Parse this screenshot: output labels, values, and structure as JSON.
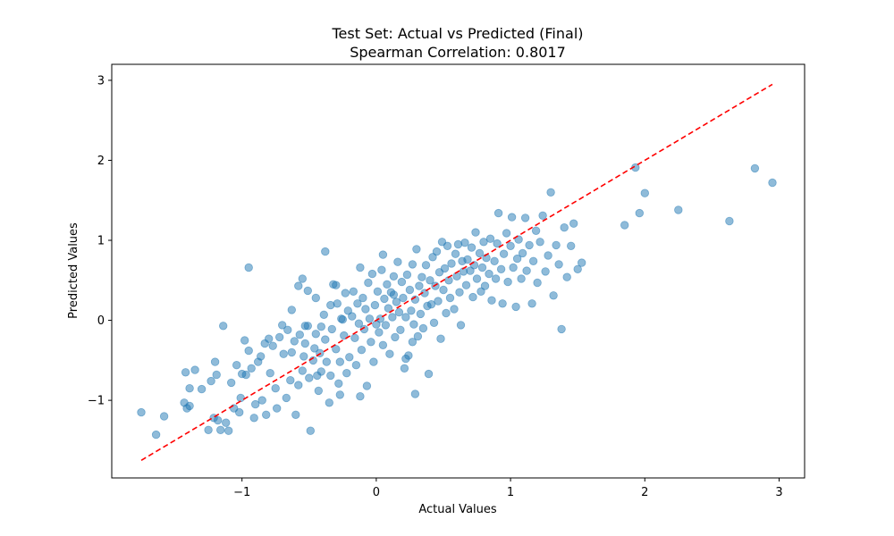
{
  "chart_data": {
    "type": "scatter",
    "title": "Test Set: Actual vs Predicted (Final)",
    "subtitle": "Spearman Correlation: 0.8017",
    "xlabel": "Actual Values",
    "ylabel": "Predicted Values",
    "xlim": [
      -1.97,
      3.19
    ],
    "ylim": [
      -1.97,
      3.2
    ],
    "xticks": [
      -1,
      0,
      1,
      2,
      3
    ],
    "yticks": [
      -1,
      0,
      1,
      2,
      3
    ],
    "xtick_labels": [
      "−1",
      "0",
      "1",
      "2",
      "3"
    ],
    "ytick_labels": [
      "−1",
      "0",
      "1",
      "2",
      "3"
    ],
    "grid": false,
    "point_color": "#1f77b4",
    "point_alpha": 0.5,
    "reference_line": {
      "x": [
        -1.75,
        2.95
      ],
      "y": [
        -1.75,
        2.95
      ],
      "color": "#ff0000",
      "style": "dashed"
    },
    "points": [
      [
        -1.75,
        -1.15
      ],
      [
        -1.64,
        -1.43
      ],
      [
        -1.58,
        -1.2
      ],
      [
        -1.43,
        -1.03
      ],
      [
        -1.42,
        -0.65
      ],
      [
        -1.41,
        -1.1
      ],
      [
        -1.39,
        -1.07
      ],
      [
        -1.39,
        -0.85
      ],
      [
        -1.35,
        -0.62
      ],
      [
        -1.3,
        -0.86
      ],
      [
        -1.25,
        -1.37
      ],
      [
        -1.23,
        -0.76
      ],
      [
        -1.21,
        -1.22
      ],
      [
        -1.2,
        -0.52
      ],
      [
        -1.19,
        -0.68
      ],
      [
        -1.18,
        -1.25
      ],
      [
        -1.16,
        -1.37
      ],
      [
        -1.14,
        -0.07
      ],
      [
        -1.12,
        -1.28
      ],
      [
        -1.1,
        -1.38
      ],
      [
        -1.08,
        -0.78
      ],
      [
        -1.06,
        -1.1
      ],
      [
        -1.04,
        -0.56
      ],
      [
        -1.02,
        -1.15
      ],
      [
        -1.01,
        -0.97
      ],
      [
        -1.0,
        -0.67
      ],
      [
        -0.98,
        -0.25
      ],
      [
        -0.97,
        -0.68
      ],
      [
        -0.95,
        -0.38
      ],
      [
        -0.93,
        -0.6
      ],
      [
        -0.91,
        -1.22
      ],
      [
        -0.9,
        -1.05
      ],
      [
        -0.88,
        -0.52
      ],
      [
        -0.86,
        -0.45
      ],
      [
        -0.85,
        -1.0
      ],
      [
        -0.83,
        -0.29
      ],
      [
        -0.82,
        -1.18
      ],
      [
        -0.8,
        -0.23
      ],
      [
        -0.79,
        -0.66
      ],
      [
        -0.77,
        -0.32
      ],
      [
        -0.75,
        -0.85
      ],
      [
        -0.74,
        -1.1
      ],
      [
        -0.72,
        -0.21
      ],
      [
        -0.7,
        -0.06
      ],
      [
        -0.69,
        -0.42
      ],
      [
        -0.67,
        -0.97
      ],
      [
        -0.66,
        -0.12
      ],
      [
        -0.64,
        -0.75
      ],
      [
        -0.63,
        -0.4
      ],
      [
        -0.61,
        -0.26
      ],
      [
        -0.6,
        -1.18
      ],
      [
        -0.58,
        -0.81
      ],
      [
        -0.57,
        -0.18
      ],
      [
        -0.55,
        -0.63
      ],
      [
        -0.54,
        -0.45
      ],
      [
        -0.53,
        -0.29
      ],
      [
        -0.51,
        -0.07
      ],
      [
        -0.5,
        -0.72
      ],
      [
        -0.49,
        -1.38
      ],
      [
        -0.47,
        -0.5
      ],
      [
        -0.46,
        -0.35
      ],
      [
        -0.45,
        -0.17
      ],
      [
        -0.43,
        -0.88
      ],
      [
        -0.42,
        -0.41
      ],
      [
        -0.41,
        -0.64
      ],
      [
        -0.39,
        0.07
      ],
      [
        -0.38,
        -0.24
      ],
      [
        -0.37,
        -0.52
      ],
      [
        -0.35,
        -1.03
      ],
      [
        -0.34,
        -0.69
      ],
      [
        -0.33,
        -0.11
      ],
      [
        -0.32,
        0.45
      ],
      [
        -0.3,
        -0.36
      ],
      [
        -0.29,
        0.21
      ],
      [
        -0.28,
        -0.79
      ],
      [
        -0.27,
        -0.52
      ],
      [
        -0.25,
        0.01
      ],
      [
        -0.24,
        -0.19
      ],
      [
        -0.23,
        0.34
      ],
      [
        -0.22,
        -0.66
      ],
      [
        -0.21,
        0.12
      ],
      [
        -0.2,
        -0.46
      ],
      [
        -0.18,
        0.05
      ],
      [
        -0.17,
        0.36
      ],
      [
        -0.16,
        -0.22
      ],
      [
        -0.15,
        -0.56
      ],
      [
        -0.14,
        0.21
      ],
      [
        -0.13,
        -0.04
      ],
      [
        -0.12,
        0.66
      ],
      [
        -0.11,
        -0.37
      ],
      [
        -0.1,
        0.28
      ],
      [
        -0.09,
        -0.11
      ],
      [
        -0.08,
        0.14
      ],
      [
        -0.07,
        -0.82
      ],
      [
        -0.06,
        0.47
      ],
      [
        -0.05,
        0.02
      ],
      [
        -0.04,
        -0.27
      ],
      [
        -0.03,
        0.58
      ],
      [
        -0.02,
        -0.52
      ],
      [
        -0.01,
        0.19
      ],
      [
        0.0,
        -0.05
      ],
      [
        0.01,
        0.36
      ],
      [
        0.02,
        -0.15
      ],
      [
        0.03,
        0.02
      ],
      [
        0.04,
        0.63
      ],
      [
        0.05,
        -0.31
      ],
      [
        0.06,
        0.27
      ],
      [
        0.07,
        -0.06
      ],
      [
        0.08,
        0.45
      ],
      [
        0.09,
        0.15
      ],
      [
        0.1,
        -0.42
      ],
      [
        0.11,
        0.35
      ],
      [
        0.12,
        0.04
      ],
      [
        0.13,
        0.55
      ],
      [
        0.14,
        -0.21
      ],
      [
        0.15,
        0.23
      ],
      [
        0.16,
        0.73
      ],
      [
        0.17,
        0.1
      ],
      [
        0.18,
        -0.12
      ],
      [
        0.19,
        0.48
      ],
      [
        0.2,
        0.28
      ],
      [
        0.21,
        -0.6
      ],
      [
        0.22,
        0.04
      ],
      [
        0.23,
        0.57
      ],
      [
        0.24,
        -0.44
      ],
      [
        0.25,
        0.38
      ],
      [
        0.26,
        0.12
      ],
      [
        0.27,
        0.7
      ],
      [
        0.28,
        -0.05
      ],
      [
        0.29,
        0.26
      ],
      [
        0.3,
        0.89
      ],
      [
        0.31,
        -0.2
      ],
      [
        0.32,
        0.43
      ],
      [
        0.33,
        0.08
      ],
      [
        0.34,
        0.54
      ],
      [
        0.35,
        -0.1
      ],
      [
        0.36,
        0.34
      ],
      [
        0.37,
        0.69
      ],
      [
        0.38,
        0.18
      ],
      [
        0.39,
        -0.67
      ],
      [
        0.4,
        0.5
      ],
      [
        0.41,
        0.2
      ],
      [
        0.42,
        0.79
      ],
      [
        0.43,
        -0.03
      ],
      [
        0.44,
        0.43
      ],
      [
        0.45,
        0.86
      ],
      [
        0.46,
        0.24
      ],
      [
        0.47,
        0.6
      ],
      [
        0.48,
        -0.23
      ],
      [
        0.49,
        0.98
      ],
      [
        0.5,
        0.38
      ],
      [
        0.51,
        0.65
      ],
      [
        0.52,
        0.09
      ],
      [
        0.53,
        0.93
      ],
      [
        0.54,
        0.5
      ],
      [
        0.55,
        0.28
      ],
      [
        0.56,
        0.71
      ],
      [
        0.58,
        0.14
      ],
      [
        0.59,
        0.83
      ],
      [
        0.6,
        0.55
      ],
      [
        0.61,
        0.95
      ],
      [
        0.62,
        0.35
      ],
      [
        0.63,
        -0.06
      ],
      [
        0.64,
        0.74
      ],
      [
        0.65,
        0.61
      ],
      [
        0.66,
        0.97
      ],
      [
        0.67,
        0.44
      ],
      [
        0.68,
        0.76
      ],
      [
        0.7,
        0.62
      ],
      [
        0.71,
        0.91
      ],
      [
        0.72,
        0.29
      ],
      [
        0.73,
        0.69
      ],
      [
        0.74,
        1.1
      ],
      [
        0.75,
        0.52
      ],
      [
        0.77,
        0.84
      ],
      [
        0.78,
        0.36
      ],
      [
        0.79,
        0.66
      ],
      [
        0.8,
        0.98
      ],
      [
        0.81,
        0.43
      ],
      [
        0.82,
        0.78
      ],
      [
        0.84,
        0.58
      ],
      [
        0.85,
        1.02
      ],
      [
        0.86,
        0.25
      ],
      [
        0.88,
        0.74
      ],
      [
        0.89,
        0.52
      ],
      [
        0.9,
        0.96
      ],
      [
        0.91,
        1.34
      ],
      [
        0.93,
        0.64
      ],
      [
        0.94,
        0.21
      ],
      [
        0.95,
        0.83
      ],
      [
        0.97,
        1.09
      ],
      [
        0.98,
        0.48
      ],
      [
        1.0,
        0.93
      ],
      [
        1.01,
        1.29
      ],
      [
        1.02,
        0.66
      ],
      [
        1.04,
        0.17
      ],
      [
        1.05,
        0.77
      ],
      [
        1.06,
        1.01
      ],
      [
        1.08,
        0.52
      ],
      [
        1.09,
        0.84
      ],
      [
        1.11,
        1.28
      ],
      [
        1.12,
        0.62
      ],
      [
        1.14,
        0.94
      ],
      [
        1.16,
        0.21
      ],
      [
        1.17,
        0.74
      ],
      [
        1.19,
        1.12
      ],
      [
        1.2,
        0.47
      ],
      [
        1.22,
        0.98
      ],
      [
        1.24,
        1.31
      ],
      [
        1.26,
        0.61
      ],
      [
        1.28,
        0.81
      ],
      [
        1.3,
        1.6
      ],
      [
        1.32,
        0.31
      ],
      [
        1.34,
        0.94
      ],
      [
        1.36,
        0.7
      ],
      [
        1.38,
        -0.11
      ],
      [
        1.4,
        1.16
      ],
      [
        1.42,
        0.54
      ],
      [
        1.45,
        0.93
      ],
      [
        1.47,
        1.21
      ],
      [
        1.5,
        0.64
      ],
      [
        1.53,
        0.72
      ],
      [
        1.85,
        1.19
      ],
      [
        1.93,
        1.91
      ],
      [
        1.96,
        1.34
      ],
      [
        2.0,
        1.59
      ],
      [
        2.25,
        1.38
      ],
      [
        2.63,
        1.24
      ],
      [
        2.82,
        1.9
      ],
      [
        2.95,
        1.72
      ],
      [
        -0.95,
        0.66
      ],
      [
        -0.58,
        0.43
      ],
      [
        -0.55,
        0.52
      ],
      [
        -0.38,
        0.86
      ],
      [
        -0.3,
        0.44
      ],
      [
        -0.45,
        0.28
      ],
      [
        -0.63,
        0.13
      ],
      [
        -0.51,
        0.37
      ],
      [
        -0.41,
        -0.08
      ],
      [
        -0.34,
        0.19
      ],
      [
        0.05,
        0.82
      ],
      [
        -0.12,
        -0.95
      ],
      [
        0.29,
        -0.92
      ],
      [
        -0.27,
        -0.93
      ],
      [
        -0.53,
        -0.07
      ],
      [
        -0.44,
        -0.69
      ],
      [
        -0.26,
        0.02
      ],
      [
        0.22,
        -0.48
      ],
      [
        0.27,
        -0.27
      ],
      [
        0.13,
        0.32
      ]
    ]
  }
}
